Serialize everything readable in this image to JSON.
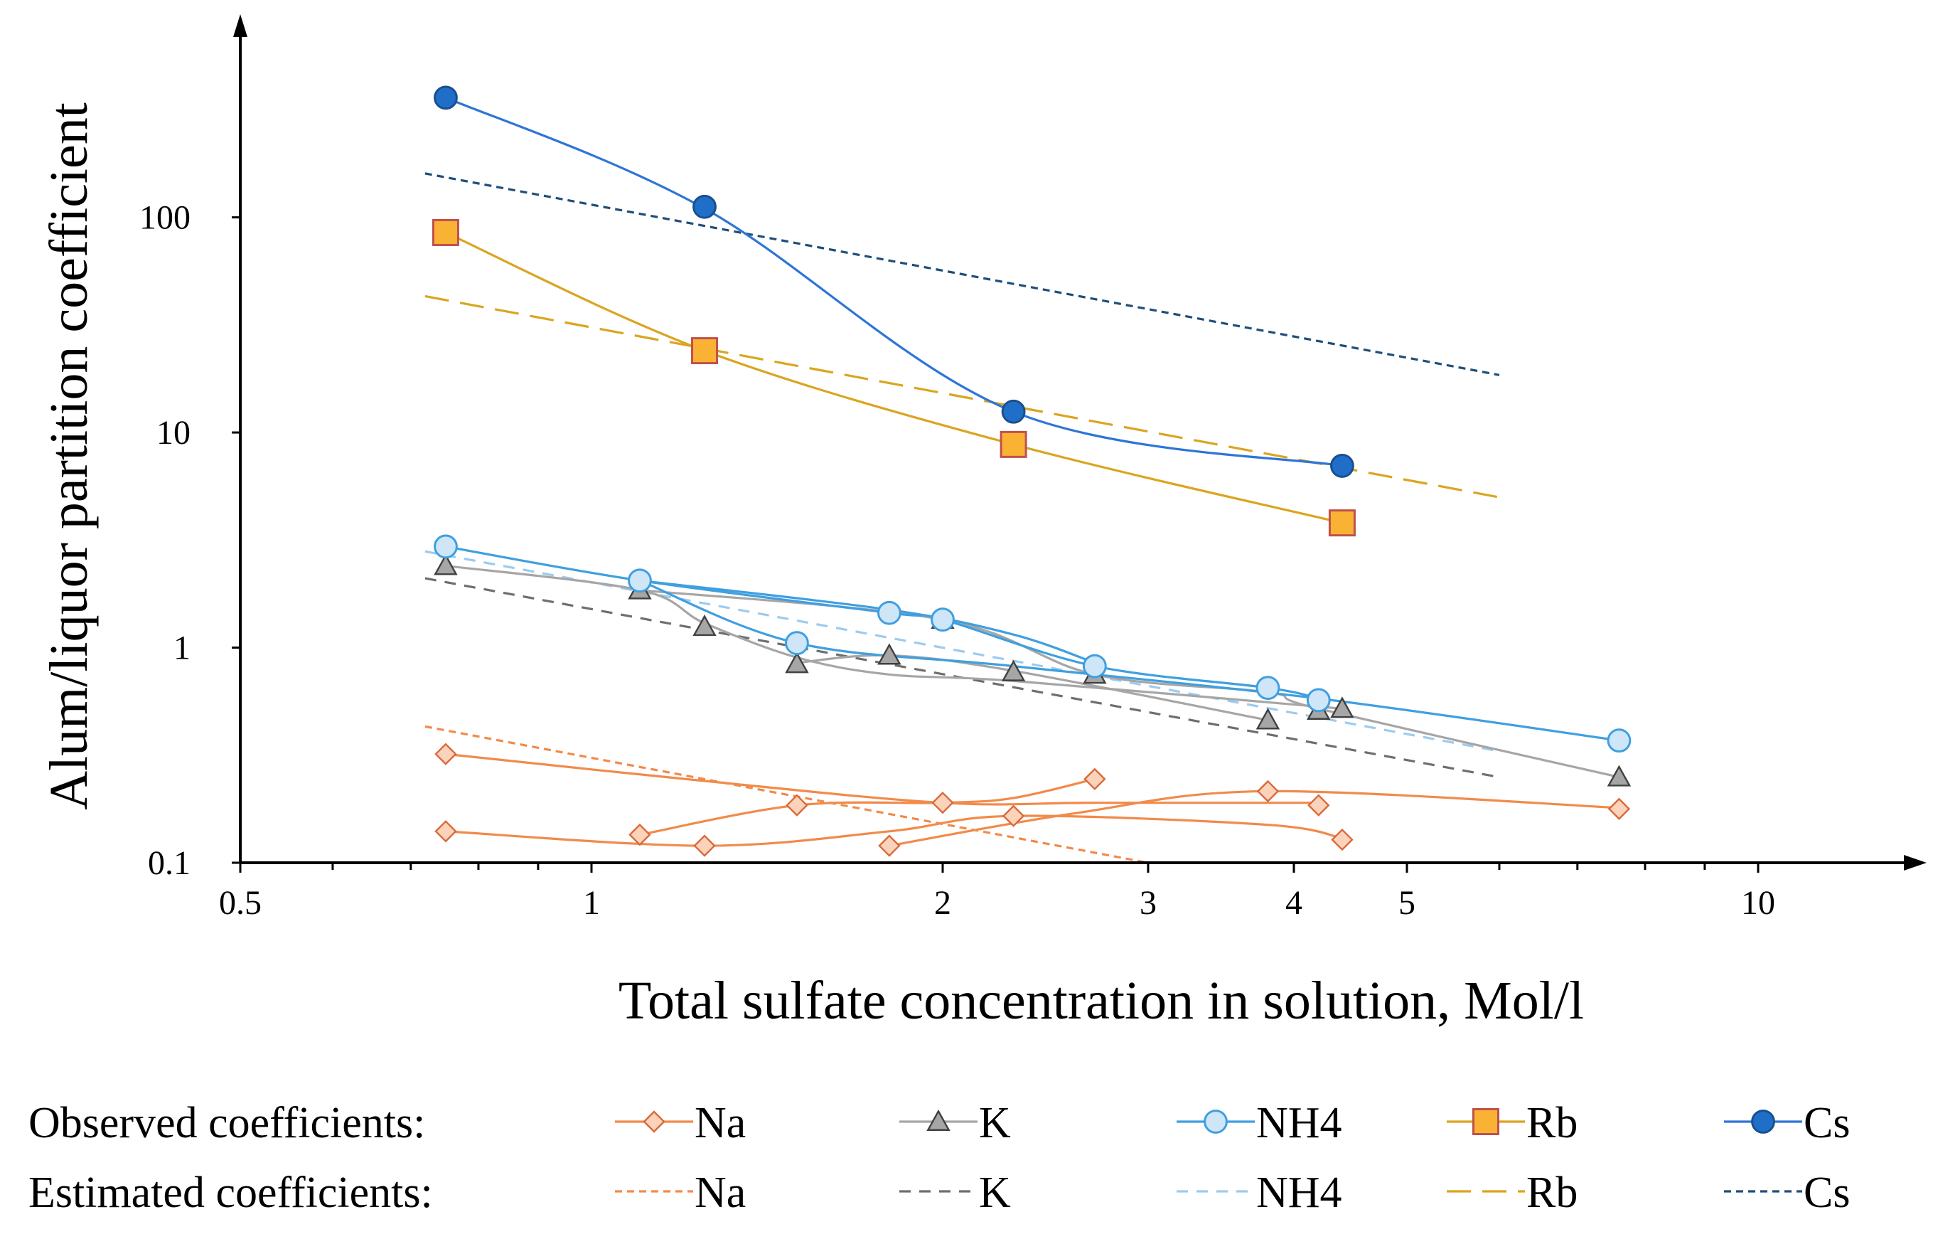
{
  "chart_data": {
    "type": "line",
    "xscale": "log",
    "yscale": "log",
    "xlabel": "Total sulfate concentration in solution, Mol/l",
    "ylabel": "Alum/liquor partition coefficient",
    "xlim": [
      0.5,
      13
    ],
    "ylim": [
      0.1,
      700
    ],
    "x_ticks": [
      0.5,
      1,
      2,
      3,
      4,
      5,
      10
    ],
    "x_tick_labels": [
      "0.5",
      "1",
      "2",
      "3",
      "4",
      "5",
      "10"
    ],
    "x_minor_ticks": [
      0.6,
      0.7,
      0.8,
      0.9,
      6,
      7,
      8,
      9
    ],
    "y_ticks": [
      0.1,
      1,
      10,
      100
    ],
    "y_tick_labels": [
      "0.1",
      "1",
      "10",
      "100"
    ],
    "legend": {
      "position": "bottom",
      "observed_label": "Observed coefficients:",
      "estimated_label": "Estimated coefficients:"
    },
    "observed_series": [
      {
        "name": "Na",
        "color": "#f28a4a",
        "marker": "diamond",
        "marker_fill": "#fbd3ba",
        "marker_edge": "#d9693a",
        "curves": [
          [
            [
              0.75,
              0.32
            ],
            [
              1.25,
              0.24
            ],
            [
              2.0,
              0.19
            ],
            [
              2.7,
              0.19
            ],
            [
              4.2,
              0.19
            ]
          ],
          [
            [
              0.75,
              0.14
            ],
            [
              1.25,
              0.12
            ],
            [
              1.8,
              0.14
            ],
            [
              2.3,
              0.165
            ],
            [
              3.8,
              0.15
            ],
            [
              4.4,
              0.13
            ]
          ],
          [
            [
              1.1,
              0.135
            ],
            [
              1.5,
              0.185
            ],
            [
              2.0,
              0.19
            ],
            [
              2.3,
              0.2
            ],
            [
              2.7,
              0.245
            ]
          ],
          [
            [
              1.8,
              0.12
            ],
            [
              2.6,
              0.17
            ],
            [
              3.8,
              0.215
            ],
            [
              7.6,
              0.18
            ]
          ]
        ],
        "points": [
          [
            0.75,
            0.32
          ],
          [
            0.75,
            0.14
          ],
          [
            1.1,
            0.135
          ],
          [
            1.25,
            0.12
          ],
          [
            1.5,
            0.185
          ],
          [
            1.8,
            0.12
          ],
          [
            2.0,
            0.19
          ],
          [
            2.3,
            0.165
          ],
          [
            2.7,
            0.245
          ],
          [
            3.8,
            0.215
          ],
          [
            4.2,
            0.185
          ],
          [
            4.4,
            0.128
          ],
          [
            7.6,
            0.178
          ]
        ]
      },
      {
        "name": "K",
        "color": "#a6a6a6",
        "marker": "triangle",
        "marker_fill": "#a6a6a6",
        "marker_edge": "#404040",
        "curves": [
          [
            [
              0.75,
              2.4
            ],
            [
              1.1,
              1.85
            ],
            [
              1.25,
              1.3
            ],
            [
              1.5,
              0.9
            ],
            [
              1.8,
              0.75
            ],
            [
              2.3,
              0.7
            ],
            [
              4.4,
              0.52
            ]
          ],
          [
            [
              1.1,
              1.85
            ],
            [
              2.0,
              1.35
            ],
            [
              2.7,
              0.75
            ],
            [
              3.8,
              0.62
            ],
            [
              4.2,
              0.52
            ],
            [
              7.6,
              0.25
            ]
          ],
          [
            [
              1.5,
              0.85
            ],
            [
              1.8,
              0.92
            ],
            [
              2.3,
              0.78
            ],
            [
              3.8,
              0.46
            ]
          ]
        ],
        "points": [
          [
            0.75,
            2.4
          ],
          [
            1.1,
            1.85
          ],
          [
            1.25,
            1.25
          ],
          [
            1.5,
            0.84
          ],
          [
            1.8,
            0.92
          ],
          [
            2.0,
            1.35
          ],
          [
            2.3,
            0.77
          ],
          [
            2.7,
            0.75
          ],
          [
            3.8,
            0.46
          ],
          [
            4.2,
            0.51
          ],
          [
            4.4,
            0.52
          ],
          [
            7.6,
            0.25
          ]
        ]
      },
      {
        "name": "NH4",
        "color": "#3f9fe0",
        "marker": "circle",
        "marker_fill": "#cfe6f8",
        "marker_edge": "#3f9fe0",
        "curves": [
          [
            [
              0.75,
              2.95
            ],
            [
              1.1,
              2.05
            ],
            [
              1.8,
              1.45
            ],
            [
              2.0,
              1.35
            ],
            [
              2.7,
              0.82
            ],
            [
              3.8,
              0.65
            ],
            [
              4.2,
              0.58
            ]
          ],
          [
            [
              1.1,
              2.05
            ],
            [
              1.5,
              1.05
            ],
            [
              2.3,
              0.82
            ],
            [
              4.2,
              0.58
            ],
            [
              7.6,
              0.37
            ]
          ],
          [
            [
              1.1,
              2.05
            ],
            [
              1.8,
              1.5
            ],
            [
              2.3,
              1.15
            ],
            [
              2.7,
              0.85
            ]
          ]
        ],
        "points": [
          [
            0.75,
            2.95
          ],
          [
            1.1,
            2.05
          ],
          [
            1.5,
            1.05
          ],
          [
            1.8,
            1.45
          ],
          [
            2.0,
            1.35
          ],
          [
            2.7,
            0.82
          ],
          [
            3.8,
            0.65
          ],
          [
            4.2,
            0.57
          ],
          [
            7.6,
            0.37
          ]
        ]
      },
      {
        "name": "Rb",
        "color": "#daa520",
        "marker": "square",
        "marker_fill": "#f9b233",
        "marker_edge": "#c0504d",
        "curves": [
          [
            [
              0.75,
              85
            ],
            [
              1.25,
              24
            ],
            [
              2.3,
              8.8
            ],
            [
              4.4,
              3.8
            ]
          ]
        ],
        "points": [
          [
            0.75,
            85
          ],
          [
            1.25,
            24
          ],
          [
            2.3,
            8.8
          ],
          [
            4.4,
            3.8
          ]
        ]
      },
      {
        "name": "Cs",
        "color": "#2e75d6",
        "marker": "circle",
        "marker_fill": "#1f6fc9",
        "marker_edge": "#1a4f8f",
        "curves": [
          [
            [
              0.75,
              360
            ],
            [
              1.25,
              110
            ],
            [
              2.3,
              12.5
            ],
            [
              4.4,
              7.0
            ]
          ]
        ],
        "points": [
          [
            0.75,
            360
          ],
          [
            1.25,
            112
          ],
          [
            2.3,
            12.5
          ],
          [
            4.4,
            7.0
          ]
        ]
      }
    ],
    "estimated_series": [
      {
        "name": "Na",
        "color": "#f28a4a",
        "dash": "short",
        "x": [
          0.72,
          3.0
        ],
        "y": [
          0.43,
          0.1
        ]
      },
      {
        "name": "K",
        "color": "#6e6e6e",
        "dash": "medium",
        "x": [
          0.72,
          6.0
        ],
        "y": [
          2.1,
          0.25
        ]
      },
      {
        "name": "NH4",
        "color": "#9dcbee",
        "dash": "medium",
        "x": [
          0.72,
          6.0
        ],
        "y": [
          2.8,
          0.33
        ]
      },
      {
        "name": "Rb",
        "color": "#daa520",
        "dash": "long",
        "x": [
          0.72,
          6.0
        ],
        "y": [
          43,
          5.0
        ]
      },
      {
        "name": "Cs",
        "color": "#1f4e79",
        "dash": "short",
        "x": [
          0.72,
          6.0
        ],
        "y": [
          160,
          18.5
        ]
      }
    ]
  }
}
